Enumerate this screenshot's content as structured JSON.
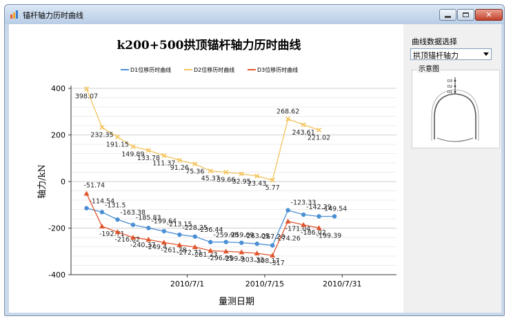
{
  "window": {
    "title": "锚杆轴力历时曲线"
  },
  "sidebar": {
    "select_label": "曲线数据选择",
    "select_value": "拱顶锚杆轴力",
    "diagram_title": "示意图",
    "diagram_labels": [
      "D3",
      "D2",
      "D1"
    ]
  },
  "chart_data": {
    "type": "line",
    "title": "k200+500拱顶锚杆轴力历时曲线",
    "xlabel": "量测日期",
    "ylabel": "轴力/kN",
    "ylim": [
      -400,
      400
    ],
    "yticks": [
      -400,
      -200,
      0,
      200,
      400
    ],
    "xticks": [
      {
        "label": "2010/7/1",
        "x": 7.5
      },
      {
        "label": "2010/7/15",
        "x": 12.5
      },
      {
        "label": "2010/7/31",
        "x": 17.5
      }
    ],
    "xlim": [
      0,
      21
    ],
    "legend_position": "top-center",
    "grid": "horizontal",
    "series": [
      {
        "name": "D1位移历时曲线",
        "color": "#4a8fd4",
        "marker": "circle",
        "x": [
          1,
          2,
          3,
          4,
          5,
          6,
          7,
          8,
          9,
          10,
          11,
          12,
          13,
          14,
          15,
          16,
          17
        ],
        "values": [
          -114.54,
          -131.5,
          -163.38,
          -185.83,
          -199.64,
          -213.15,
          -228.25,
          -236.44,
          -259.98,
          -259.69,
          -263.05,
          -267.28,
          -274.26,
          -123.33,
          -142.29,
          -149.54,
          -149.54
        ],
        "labels": [
          "-114.54",
          "-131.5",
          "-163.38",
          "-185.83",
          "-199.64",
          "-213.15",
          "-228.25",
          "-236.44",
          "-259.98",
          "-259.69",
          "-263.05",
          "-267.28",
          "-274.26",
          "-123.33",
          "-142.29",
          "-149.54",
          ""
        ]
      },
      {
        "name": "D2位移历时曲线",
        "color": "#f3c35a",
        "marker": "x",
        "x": [
          1,
          2,
          3,
          4,
          5,
          6,
          7,
          8,
          9,
          10,
          11,
          12,
          13,
          14,
          15,
          16
        ],
        "values": [
          398.07,
          232.35,
          191.15,
          149.89,
          133.78,
          111.37,
          91.26,
          75.36,
          45.37,
          39.66,
          32.95,
          23.43,
          5.77,
          268.62,
          243.61,
          221.02
        ],
        "labels": [
          "398.07",
          "232.35",
          "191.15",
          "149.89",
          "133.78",
          "111.37",
          "91.26",
          "75.36",
          "45.37",
          "39.66",
          "32.95",
          "23.43",
          "5.77",
          "268.62",
          "243.61",
          "221.02"
        ]
      },
      {
        "name": "D3位移历时曲线",
        "color": "#e0542c",
        "marker": "triangle",
        "x": [
          1,
          2,
          3,
          4,
          5,
          6,
          7,
          8,
          9,
          10,
          11,
          12,
          13,
          14,
          15,
          16
        ],
        "values": [
          -51.74,
          -192.71,
          -216.82,
          -240.37,
          -249.4,
          -261.78,
          -272.71,
          -281.23,
          -296.95,
          -299.9,
          -303.33,
          -308.17,
          -317,
          -171.04,
          -186.02,
          -199.39
        ],
        "labels": [
          "-51.74",
          "-192.71",
          "-216.82",
          "-240.37",
          "-249.4",
          "-261.78",
          "-272.71",
          "-281.23",
          "-296.95",
          "-299.9",
          "-303.33",
          "-308.17",
          "-317",
          "-171.04",
          "-186.02",
          "-199.39"
        ]
      }
    ]
  }
}
